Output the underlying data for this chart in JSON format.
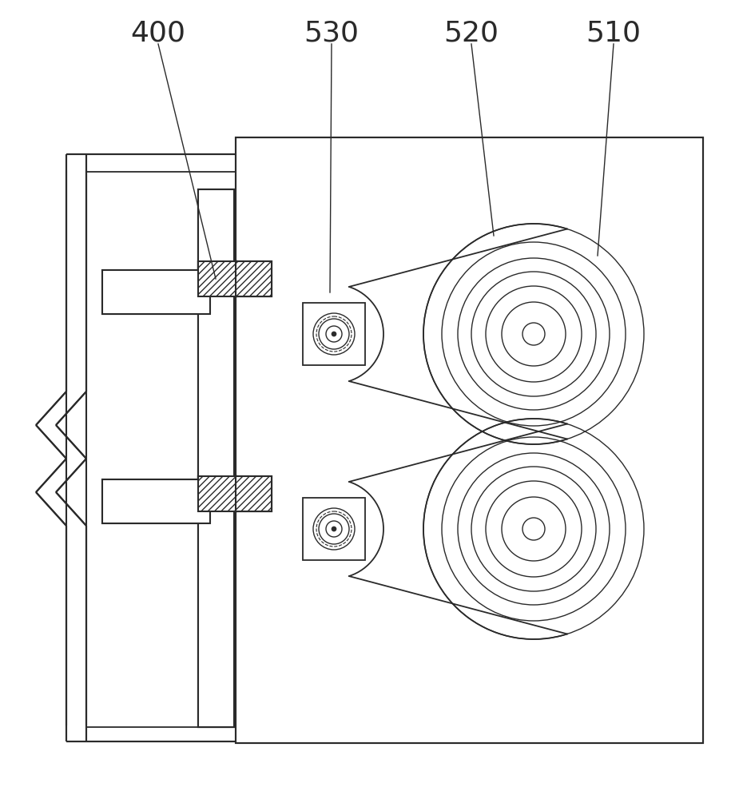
{
  "bg_color": "#ffffff",
  "line_color": "#2a2a2a",
  "fig_width": 9.25,
  "fig_height": 10.0,
  "dpi": 100,
  "label_fontsize": 26
}
